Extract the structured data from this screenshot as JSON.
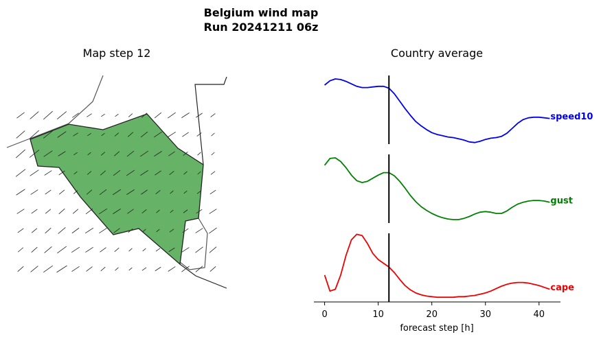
{
  "suptitle_line1": "Belgium wind map",
  "suptitle_line2": "Run 20241211 06z",
  "map_title": "Map step 12",
  "colors": {
    "map_fill": "#66b266",
    "speed10": "#0000ee",
    "gust": "#008000",
    "cape": "#ee0000"
  },
  "chart_data": [
    {
      "type": "map",
      "title": "Map step 12",
      "region": "Belgium",
      "step": 12,
      "layers": [
        "country-outline",
        "wind-barbs"
      ]
    },
    {
      "type": "line",
      "title": "Country average",
      "xlabel": "forecast step [h]",
      "xlim": [
        -2,
        44
      ],
      "xticks": [
        0,
        10,
        20,
        30,
        40
      ],
      "current_step": 12,
      "y_axis_visible": false,
      "series": [
        {
          "name": "speed10",
          "x": [
            0,
            1,
            2,
            3,
            4,
            5,
            6,
            7,
            8,
            9,
            10,
            11,
            12,
            13,
            14,
            15,
            16,
            17,
            18,
            19,
            20,
            21,
            22,
            23,
            24,
            25,
            26,
            27,
            28,
            29,
            30,
            31,
            32,
            33,
            34,
            35,
            36,
            37,
            38,
            39,
            40,
            41,
            42
          ],
          "values": [
            0.9,
            0.97,
            1.0,
            0.99,
            0.96,
            0.92,
            0.88,
            0.86,
            0.86,
            0.87,
            0.88,
            0.88,
            0.85,
            0.76,
            0.64,
            0.52,
            0.41,
            0.31,
            0.24,
            0.18,
            0.13,
            0.1,
            0.08,
            0.06,
            0.05,
            0.03,
            0.01,
            -0.02,
            -0.03,
            -0.01,
            0.02,
            0.04,
            0.05,
            0.07,
            0.12,
            0.2,
            0.28,
            0.34,
            0.37,
            0.38,
            0.38,
            0.37,
            0.36
          ]
        },
        {
          "name": "gust",
          "x": [
            0,
            1,
            2,
            3,
            4,
            5,
            6,
            7,
            8,
            9,
            10,
            11,
            12,
            13,
            14,
            15,
            16,
            17,
            18,
            19,
            20,
            21,
            22,
            23,
            24,
            25,
            26,
            27,
            28,
            29,
            30,
            31,
            32,
            33,
            34,
            35,
            36,
            37,
            38,
            39,
            40,
            41,
            42
          ],
          "values": [
            0.88,
            0.99,
            1.0,
            0.94,
            0.84,
            0.72,
            0.63,
            0.6,
            0.62,
            0.67,
            0.72,
            0.76,
            0.76,
            0.71,
            0.62,
            0.51,
            0.39,
            0.29,
            0.21,
            0.15,
            0.1,
            0.06,
            0.03,
            0.01,
            0.0,
            0.0,
            0.02,
            0.05,
            0.09,
            0.12,
            0.13,
            0.12,
            0.1,
            0.1,
            0.14,
            0.2,
            0.25,
            0.28,
            0.3,
            0.31,
            0.31,
            0.3,
            0.28
          ]
        },
        {
          "name": "cape",
          "x": [
            0,
            1,
            2,
            3,
            4,
            5,
            6,
            7,
            8,
            9,
            10,
            11,
            12,
            13,
            14,
            15,
            16,
            17,
            18,
            19,
            20,
            21,
            22,
            23,
            24,
            25,
            26,
            27,
            28,
            29,
            30,
            31,
            32,
            33,
            34,
            35,
            36,
            37,
            38,
            39,
            40,
            41,
            42
          ],
          "values": [
            0.38,
            0.12,
            0.15,
            0.38,
            0.7,
            0.95,
            1.04,
            1.02,
            0.89,
            0.73,
            0.63,
            0.57,
            0.51,
            0.42,
            0.31,
            0.21,
            0.14,
            0.09,
            0.06,
            0.04,
            0.03,
            0.02,
            0.02,
            0.02,
            0.02,
            0.03,
            0.03,
            0.04,
            0.05,
            0.07,
            0.09,
            0.12,
            0.16,
            0.2,
            0.23,
            0.25,
            0.26,
            0.26,
            0.25,
            0.23,
            0.21,
            0.18,
            0.15
          ]
        }
      ]
    }
  ]
}
